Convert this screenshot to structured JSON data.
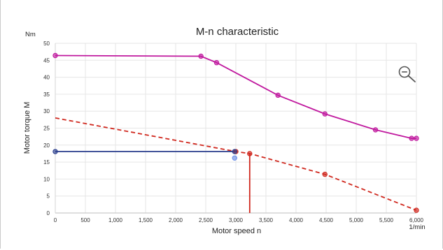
{
  "chart_data": {
    "type": "line",
    "title": "M-n characteristic",
    "xlabel": "Motor speed n",
    "ylabel": "Motor torque M",
    "x_unit": "1/min",
    "y_unit": "Nm",
    "xlim": [
      0,
      6000
    ],
    "ylim": [
      0,
      50
    ],
    "x_ticks": [
      0,
      500,
      1000,
      1500,
      2000,
      2500,
      3000,
      3500,
      4000,
      4500,
      5000,
      5500,
      6000
    ],
    "x_tick_labels": [
      "0",
      "500",
      "1,000",
      "1,500",
      "2,000",
      "2,500",
      "3,000",
      "3,500",
      "4,000",
      "4,500",
      "5,000",
      "5,500",
      "6,000"
    ],
    "y_ticks": [
      0,
      5,
      10,
      15,
      20,
      25,
      30,
      35,
      40,
      45,
      50
    ],
    "y_tick_labels": [
      "0",
      "5",
      "10",
      "15",
      "20",
      "25",
      "30",
      "35",
      "40",
      "45",
      "50"
    ],
    "grid": true,
    "series": [
      {
        "color": "#c0189e",
        "style": "solid",
        "points": [
          [
            0,
            46.4
          ],
          [
            2420,
            46.2
          ],
          [
            2680,
            44.3
          ],
          [
            3700,
            34.7
          ],
          [
            4480,
            29.2
          ],
          [
            5320,
            24.5
          ],
          [
            5920,
            22.0
          ],
          [
            6000,
            22.0
          ]
        ]
      },
      {
        "color": "#d0281e",
        "style": "dashed",
        "points": [
          [
            0,
            28.0
          ],
          [
            3000,
            18.1
          ],
          [
            3230,
            17.5
          ],
          [
            4480,
            11.4
          ],
          [
            6000,
            0.8
          ]
        ]
      },
      {
        "color": "#283c8c",
        "style": "solid",
        "points": [
          [
            0,
            18.1
          ],
          [
            2980,
            18.1
          ]
        ]
      },
      {
        "color": "#d0281e",
        "style": "solid",
        "points": [
          [
            3230,
            17.5
          ],
          [
            3230,
            0
          ]
        ]
      }
    ],
    "markers": [
      {
        "color": "#c0189e",
        "points": [
          [
            0,
            46.4
          ],
          [
            2420,
            46.2
          ],
          [
            2680,
            44.3
          ],
          [
            3700,
            34.7
          ],
          [
            4480,
            29.2
          ],
          [
            5320,
            24.5
          ],
          [
            5920,
            22.0
          ],
          [
            6000,
            22.0
          ]
        ]
      },
      {
        "color": "#d0281e",
        "points": [
          [
            3000,
            18.1
          ],
          [
            3230,
            17.5
          ],
          [
            4480,
            11.4
          ],
          [
            6000,
            0.8
          ]
        ]
      },
      {
        "color": "#283c8c",
        "points": [
          [
            0,
            18.1
          ],
          [
            2980,
            18.1
          ]
        ]
      },
      {
        "color": "#6b8fe8",
        "points": [
          [
            2980,
            16.2
          ]
        ]
      }
    ]
  },
  "icons": {
    "zoom": "zoom-out-icon"
  }
}
